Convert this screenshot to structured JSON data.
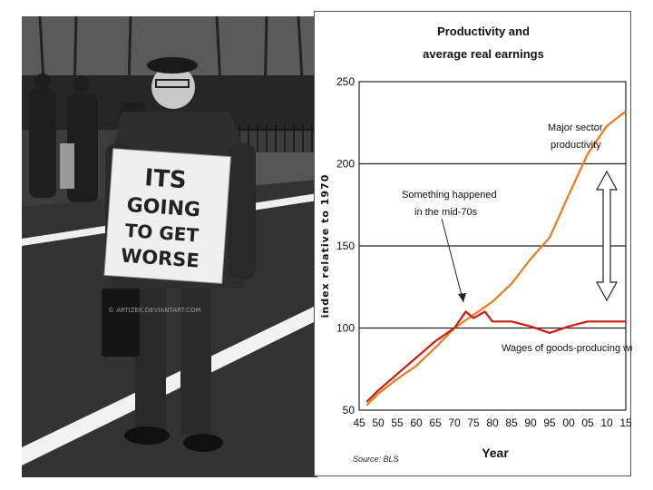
{
  "photo": {
    "sign_lines": [
      "ITS",
      "GOING",
      "TO GET",
      "WORSE"
    ],
    "watermark": "© ARTIZEK.DEVIANTART.COM"
  },
  "chart_data": {
    "type": "line",
    "title_lines": [
      "Productivity and",
      "average real earnings"
    ],
    "xlabel": "Year",
    "ylabel": "index relative to 1970",
    "xlim": [
      45,
      15
    ],
    "ylim": [
      50,
      250
    ],
    "x_tick_labels": [
      "45",
      "50",
      "55",
      "60",
      "65",
      "70",
      "75",
      "80",
      "85",
      "90",
      "95",
      "00",
      "05",
      "10",
      "15"
    ],
    "y_tick_labels": [
      "50",
      "100",
      "150",
      "200",
      "250"
    ],
    "grid": "horizontal at 100, 150, 200",
    "series": [
      {
        "name": "Major sector productivity",
        "label_lines": [
          "Major sector",
          "productivity"
        ],
        "color": "#f07818",
        "x": [
          1947,
          1950,
          1955,
          1960,
          1965,
          1970,
          1975,
          1980,
          1985,
          1990,
          1995,
          2000,
          2005,
          2010,
          2015
        ],
        "y": [
          53,
          60,
          69,
          77,
          88,
          100,
          108,
          116,
          127,
          142,
          155,
          181,
          206,
          223,
          232
        ]
      },
      {
        "name": "Wages of goods-producing workers",
        "label_lines": [
          "Wages of goods-producing workers"
        ],
        "color": "#cc1a10",
        "x": [
          1947,
          1950,
          1955,
          1960,
          1965,
          1970,
          1973,
          1975,
          1978,
          1980,
          1985,
          1990,
          1995,
          2000,
          2005,
          2010,
          2015
        ],
        "y": [
          55,
          62,
          72,
          82,
          92,
          100,
          110,
          106,
          110,
          104,
          104,
          101,
          97,
          101,
          104,
          104,
          104
        ]
      }
    ],
    "annotations": [
      {
        "text_lines": [
          "Something happened",
          "in the mid-70s"
        ],
        "points_to_year": 1973
      }
    ],
    "source": "Source: BLS"
  }
}
